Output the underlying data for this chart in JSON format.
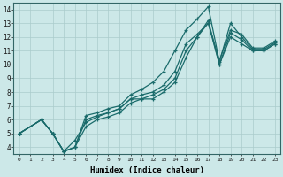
{
  "xlabel": "Humidex (Indice chaleur)",
  "xlim": [
    -0.5,
    23.5
  ],
  "ylim": [
    3.5,
    14.5
  ],
  "xticks": [
    0,
    1,
    2,
    3,
    4,
    5,
    6,
    7,
    8,
    9,
    10,
    11,
    12,
    13,
    14,
    15,
    16,
    17,
    18,
    19,
    20,
    21,
    22,
    23
  ],
  "yticks": [
    4,
    5,
    6,
    7,
    8,
    9,
    10,
    11,
    12,
    13,
    14
  ],
  "background_color": "#cce8e8",
  "grid_color": "#aacccc",
  "line_color": "#1a6b6b",
  "lines": [
    {
      "x": [
        0,
        2,
        3,
        4,
        5,
        6,
        7,
        8,
        9,
        10,
        11,
        12,
        13,
        14,
        15,
        16,
        17,
        18,
        19,
        20,
        21,
        22,
        23
      ],
      "y": [
        5,
        6,
        5,
        3.7,
        4.0,
        6.3,
        6.5,
        6.8,
        7.0,
        7.8,
        8.2,
        8.7,
        9.5,
        11.0,
        12.5,
        13.3,
        14.2,
        10.2,
        13.0,
        12.0,
        11.1,
        11.1,
        11.6
      ]
    },
    {
      "x": [
        0,
        2,
        3,
        4,
        5,
        6,
        7,
        8,
        9,
        10,
        11,
        12,
        13,
        14,
        15,
        16,
        17,
        18,
        19,
        20,
        21,
        22,
        23
      ],
      "y": [
        5,
        6,
        5,
        3.7,
        4.0,
        6.0,
        6.3,
        6.5,
        6.8,
        7.5,
        7.8,
        8.0,
        8.5,
        9.5,
        11.5,
        12.2,
        13.0,
        10.0,
        12.3,
        11.8,
        11.0,
        11.0,
        11.5
      ]
    },
    {
      "x": [
        0,
        2,
        3,
        4,
        5,
        6,
        7,
        8,
        9,
        10,
        11,
        12,
        13,
        14,
        15,
        16,
        17,
        18,
        19,
        20,
        21,
        22,
        23
      ],
      "y": [
        5,
        6,
        5,
        3.7,
        4.5,
        5.8,
        6.2,
        6.5,
        6.8,
        7.5,
        7.5,
        7.8,
        8.2,
        9.0,
        11.0,
        12.0,
        13.0,
        10.3,
        12.5,
        12.2,
        11.2,
        11.2,
        11.7
      ]
    },
    {
      "x": [
        0,
        2,
        3,
        4,
        5,
        6,
        7,
        8,
        9,
        10,
        11,
        12,
        13,
        14,
        15,
        16,
        17,
        18,
        19,
        20,
        21,
        22,
        23
      ],
      "y": [
        5,
        6,
        5,
        3.7,
        4.0,
        5.5,
        6.0,
        6.2,
        6.5,
        7.2,
        7.5,
        7.5,
        8.0,
        8.7,
        10.5,
        12.0,
        13.2,
        10.0,
        12.0,
        11.5,
        11.0,
        11.0,
        11.5
      ]
    }
  ]
}
